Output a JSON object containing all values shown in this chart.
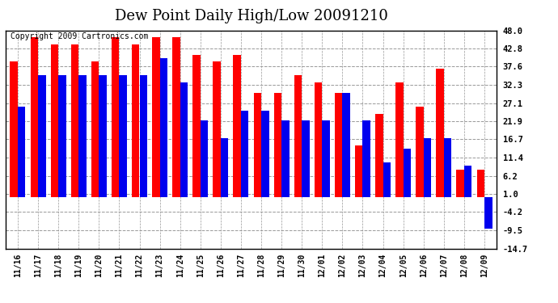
{
  "title": "Dew Point Daily High/Low 20091210",
  "copyright": "Copyright 2009 Cartronics.com",
  "dates": [
    "11/16",
    "11/17",
    "11/18",
    "11/19",
    "11/20",
    "11/21",
    "11/22",
    "11/23",
    "11/24",
    "11/25",
    "11/26",
    "11/27",
    "11/28",
    "11/29",
    "11/30",
    "12/01",
    "12/02",
    "12/03",
    "12/04",
    "12/05",
    "12/06",
    "12/07",
    "12/08",
    "12/09"
  ],
  "highs": [
    39.0,
    46.0,
    44.0,
    44.0,
    39.0,
    46.0,
    44.0,
    46.0,
    46.0,
    41.0,
    39.0,
    41.0,
    30.0,
    30.0,
    35.0,
    33.0,
    30.0,
    15.0,
    24.0,
    33.0,
    26.0,
    37.0,
    8.0,
    8.0
  ],
  "lows": [
    26.0,
    35.0,
    35.0,
    35.0,
    35.0,
    35.0,
    35.0,
    40.0,
    33.0,
    22.0,
    17.0,
    25.0,
    25.0,
    22.0,
    22.0,
    22.0,
    30.0,
    22.0,
    10.0,
    14.0,
    17.0,
    17.0,
    9.0,
    -9.0
  ],
  "high_color": "#FF0000",
  "low_color": "#0000EE",
  "bg_color": "#FFFFFF",
  "plot_bg": "#FFFFFF",
  "grid_color": "#999999",
  "yticks": [
    48.0,
    42.8,
    37.6,
    32.3,
    27.1,
    21.9,
    16.7,
    11.4,
    6.2,
    1.0,
    -4.2,
    -9.5,
    -14.7
  ],
  "ymin": -14.7,
  "ymax": 48.0,
  "title_fontsize": 13,
  "copyright_fontsize": 7,
  "bar_width": 0.38
}
